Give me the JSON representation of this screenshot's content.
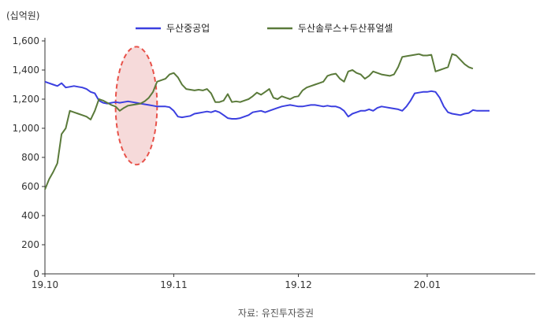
{
  "chart_data": {
    "type": "line",
    "unit_label": "(십억원)",
    "source": "자료: 유진투자증권",
    "ylim": [
      0,
      1600
    ],
    "y_ticks": [
      0,
      200,
      400,
      600,
      800,
      1000,
      1200,
      1400,
      1600
    ],
    "y_tick_labels": [
      "0",
      "200",
      "400",
      "600",
      "800",
      "1,000",
      "1,200",
      "1,400",
      "1,600"
    ],
    "x_range": [
      "2019-10-01",
      "2020-01-27"
    ],
    "x_ticks": [
      {
        "date": "2019-10-01",
        "label": "19.10"
      },
      {
        "date": "2019-11-01",
        "label": "19.11"
      },
      {
        "date": "2019-12-01",
        "label": "19.12"
      },
      {
        "date": "2020-01-01",
        "label": "20.01"
      }
    ],
    "grid": false,
    "legend_position": "top",
    "highlight": {
      "shape": "ellipse",
      "from": "2019-10-18",
      "to": "2019-10-28",
      "y_from": 750,
      "y_to": 1560,
      "fill": "#f6dada",
      "stroke": "#e8524a"
    },
    "series": [
      {
        "name": "두산중공업",
        "color": "#3b3fe0",
        "points": [
          [
            "2019-10-01",
            1320
          ],
          [
            "2019-10-02",
            1310
          ],
          [
            "2019-10-03",
            1300
          ],
          [
            "2019-10-04",
            1290
          ],
          [
            "2019-10-05",
            1310
          ],
          [
            "2019-10-06",
            1280
          ],
          [
            "2019-10-07",
            1285
          ],
          [
            "2019-10-08",
            1290
          ],
          [
            "2019-10-09",
            1285
          ],
          [
            "2019-10-10",
            1280
          ],
          [
            "2019-10-11",
            1270
          ],
          [
            "2019-10-12",
            1250
          ],
          [
            "2019-10-13",
            1240
          ],
          [
            "2019-10-14",
            1190
          ],
          [
            "2019-10-15",
            1175
          ],
          [
            "2019-10-16",
            1170
          ],
          [
            "2019-10-17",
            1175
          ],
          [
            "2019-10-18",
            1180
          ],
          [
            "2019-10-19",
            1175
          ],
          [
            "2019-10-20",
            1180
          ],
          [
            "2019-10-21",
            1185
          ],
          [
            "2019-10-22",
            1180
          ],
          [
            "2019-10-23",
            1175
          ],
          [
            "2019-10-24",
            1170
          ],
          [
            "2019-10-25",
            1165
          ],
          [
            "2019-10-26",
            1160
          ],
          [
            "2019-10-27",
            1155
          ],
          [
            "2019-10-28",
            1150
          ],
          [
            "2019-10-29",
            1150
          ],
          [
            "2019-10-30",
            1150
          ],
          [
            "2019-10-31",
            1145
          ],
          [
            "2019-11-01",
            1120
          ],
          [
            "2019-11-02",
            1080
          ],
          [
            "2019-11-03",
            1075
          ],
          [
            "2019-11-04",
            1080
          ],
          [
            "2019-11-05",
            1085
          ],
          [
            "2019-11-06",
            1100
          ],
          [
            "2019-11-07",
            1105
          ],
          [
            "2019-11-08",
            1110
          ],
          [
            "2019-11-09",
            1115
          ],
          [
            "2019-11-10",
            1110
          ],
          [
            "2019-11-11",
            1120
          ],
          [
            "2019-11-12",
            1110
          ],
          [
            "2019-11-13",
            1090
          ],
          [
            "2019-11-14",
            1070
          ],
          [
            "2019-11-15",
            1065
          ],
          [
            "2019-11-16",
            1065
          ],
          [
            "2019-11-17",
            1070
          ],
          [
            "2019-11-18",
            1080
          ],
          [
            "2019-11-19",
            1090
          ],
          [
            "2019-11-20",
            1110
          ],
          [
            "2019-11-21",
            1115
          ],
          [
            "2019-11-22",
            1120
          ],
          [
            "2019-11-23",
            1110
          ],
          [
            "2019-11-24",
            1120
          ],
          [
            "2019-11-25",
            1130
          ],
          [
            "2019-11-26",
            1140
          ],
          [
            "2019-11-27",
            1150
          ],
          [
            "2019-11-28",
            1155
          ],
          [
            "2019-11-29",
            1160
          ],
          [
            "2019-11-30",
            1155
          ],
          [
            "2019-12-01",
            1150
          ],
          [
            "2019-12-02",
            1150
          ],
          [
            "2019-12-03",
            1155
          ],
          [
            "2019-12-04",
            1160
          ],
          [
            "2019-12-05",
            1160
          ],
          [
            "2019-12-06",
            1155
          ],
          [
            "2019-12-07",
            1150
          ],
          [
            "2019-12-08",
            1155
          ],
          [
            "2019-12-09",
            1150
          ],
          [
            "2019-12-10",
            1150
          ],
          [
            "2019-12-11",
            1140
          ],
          [
            "2019-12-12",
            1120
          ],
          [
            "2019-12-13",
            1080
          ],
          [
            "2019-12-14",
            1100
          ],
          [
            "2019-12-15",
            1110
          ],
          [
            "2019-12-16",
            1120
          ],
          [
            "2019-12-17",
            1120
          ],
          [
            "2019-12-18",
            1130
          ],
          [
            "2019-12-19",
            1120
          ],
          [
            "2019-12-20",
            1140
          ],
          [
            "2019-12-21",
            1150
          ],
          [
            "2019-12-22",
            1145
          ],
          [
            "2019-12-23",
            1140
          ],
          [
            "2019-12-24",
            1135
          ],
          [
            "2019-12-25",
            1130
          ],
          [
            "2019-12-26",
            1120
          ],
          [
            "2019-12-27",
            1150
          ],
          [
            "2019-12-28",
            1190
          ],
          [
            "2019-12-29",
            1240
          ],
          [
            "2019-12-30",
            1245
          ],
          [
            "2019-12-31",
            1250
          ],
          [
            "2020-01-01",
            1250
          ],
          [
            "2020-01-02",
            1255
          ],
          [
            "2020-01-03",
            1250
          ],
          [
            "2020-01-04",
            1210
          ],
          [
            "2020-01-05",
            1150
          ],
          [
            "2020-01-06",
            1110
          ],
          [
            "2020-01-07",
            1100
          ],
          [
            "2020-01-08",
            1095
          ],
          [
            "2020-01-09",
            1090
          ],
          [
            "2020-01-10",
            1100
          ],
          [
            "2020-01-11",
            1105
          ],
          [
            "2020-01-12",
            1125
          ],
          [
            "2020-01-13",
            1120
          ],
          [
            "2020-01-14",
            1120
          ],
          [
            "2020-01-15",
            1120
          ],
          [
            "2020-01-16",
            1120
          ]
        ]
      },
      {
        "name": "두산솔루스+두산퓨얼셀",
        "color": "#5a7a3a",
        "points": [
          [
            "2019-10-01",
            580
          ],
          [
            "2019-10-02",
            650
          ],
          [
            "2019-10-03",
            700
          ],
          [
            "2019-10-04",
            760
          ],
          [
            "2019-10-05",
            960
          ],
          [
            "2019-10-06",
            1000
          ],
          [
            "2019-10-07",
            1120
          ],
          [
            "2019-10-08",
            1110
          ],
          [
            "2019-10-09",
            1100
          ],
          [
            "2019-10-10",
            1090
          ],
          [
            "2019-10-11",
            1080
          ],
          [
            "2019-10-12",
            1060
          ],
          [
            "2019-10-13",
            1120
          ],
          [
            "2019-10-14",
            1200
          ],
          [
            "2019-10-15",
            1190
          ],
          [
            "2019-10-16",
            1175
          ],
          [
            "2019-10-17",
            1160
          ],
          [
            "2019-10-18",
            1150
          ],
          [
            "2019-10-19",
            1120
          ],
          [
            "2019-10-20",
            1140
          ],
          [
            "2019-10-21",
            1155
          ],
          [
            "2019-10-22",
            1160
          ],
          [
            "2019-10-23",
            1165
          ],
          [
            "2019-10-24",
            1170
          ],
          [
            "2019-10-25",
            1185
          ],
          [
            "2019-10-26",
            1210
          ],
          [
            "2019-10-27",
            1250
          ],
          [
            "2019-10-28",
            1320
          ],
          [
            "2019-10-29",
            1330
          ],
          [
            "2019-10-30",
            1340
          ],
          [
            "2019-10-31",
            1370
          ],
          [
            "2019-11-01",
            1380
          ],
          [
            "2019-11-02",
            1350
          ],
          [
            "2019-11-03",
            1300
          ],
          [
            "2019-11-04",
            1270
          ],
          [
            "2019-11-05",
            1265
          ],
          [
            "2019-11-06",
            1260
          ],
          [
            "2019-11-07",
            1265
          ],
          [
            "2019-11-08",
            1260
          ],
          [
            "2019-11-09",
            1270
          ],
          [
            "2019-11-10",
            1240
          ],
          [
            "2019-11-11",
            1180
          ],
          [
            "2019-11-12",
            1180
          ],
          [
            "2019-11-13",
            1190
          ],
          [
            "2019-11-14",
            1235
          ],
          [
            "2019-11-15",
            1180
          ],
          [
            "2019-11-16",
            1185
          ],
          [
            "2019-11-17",
            1180
          ],
          [
            "2019-11-18",
            1190
          ],
          [
            "2019-11-19",
            1200
          ],
          [
            "2019-11-20",
            1220
          ],
          [
            "2019-11-21",
            1245
          ],
          [
            "2019-11-22",
            1230
          ],
          [
            "2019-11-23",
            1250
          ],
          [
            "2019-11-24",
            1270
          ],
          [
            "2019-11-25",
            1210
          ],
          [
            "2019-11-26",
            1200
          ],
          [
            "2019-11-27",
            1220
          ],
          [
            "2019-11-28",
            1210
          ],
          [
            "2019-11-29",
            1200
          ],
          [
            "2019-11-30",
            1215
          ],
          [
            "2019-12-01",
            1220
          ],
          [
            "2019-12-02",
            1260
          ],
          [
            "2019-12-03",
            1280
          ],
          [
            "2019-12-04",
            1290
          ],
          [
            "2019-12-05",
            1300
          ],
          [
            "2019-12-06",
            1310
          ],
          [
            "2019-12-07",
            1320
          ],
          [
            "2019-12-08",
            1360
          ],
          [
            "2019-12-09",
            1370
          ],
          [
            "2019-12-10",
            1375
          ],
          [
            "2019-12-11",
            1340
          ],
          [
            "2019-12-12",
            1320
          ],
          [
            "2019-12-13",
            1390
          ],
          [
            "2019-12-14",
            1400
          ],
          [
            "2019-12-15",
            1380
          ],
          [
            "2019-12-16",
            1370
          ],
          [
            "2019-12-17",
            1340
          ],
          [
            "2019-12-18",
            1360
          ],
          [
            "2019-12-19",
            1390
          ],
          [
            "2019-12-20",
            1380
          ],
          [
            "2019-12-21",
            1370
          ],
          [
            "2019-12-22",
            1365
          ],
          [
            "2019-12-23",
            1360
          ],
          [
            "2019-12-24",
            1370
          ],
          [
            "2019-12-25",
            1420
          ],
          [
            "2019-12-26",
            1490
          ],
          [
            "2019-12-27",
            1495
          ],
          [
            "2019-12-28",
            1500
          ],
          [
            "2019-12-29",
            1505
          ],
          [
            "2019-12-30",
            1510
          ],
          [
            "2019-12-31",
            1500
          ],
          [
            "2020-01-01",
            1500
          ],
          [
            "2020-01-02",
            1505
          ],
          [
            "2020-01-03",
            1390
          ],
          [
            "2020-01-04",
            1400
          ],
          [
            "2020-01-05",
            1410
          ],
          [
            "2020-01-06",
            1420
          ],
          [
            "2020-01-07",
            1510
          ],
          [
            "2020-01-08",
            1500
          ],
          [
            "2020-01-09",
            1470
          ],
          [
            "2020-01-10",
            1440
          ],
          [
            "2020-01-11",
            1420
          ],
          [
            "2020-01-12",
            1410
          ]
        ]
      }
    ]
  }
}
